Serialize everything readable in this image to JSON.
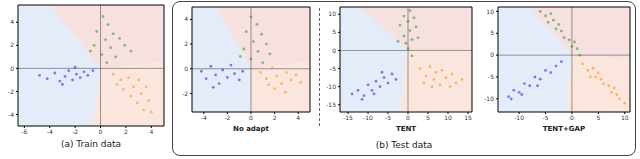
{
  "chart_data": [
    {
      "type": "scatter",
      "title": "(a) Train data",
      "xlim": [
        -6.5,
        5
      ],
      "ylim": [
        -5,
        5.5
      ],
      "xticks": [
        -6,
        -4,
        -2,
        0,
        2,
        4
      ],
      "yticks": [
        -4,
        -2,
        0,
        2,
        4
      ],
      "reference_lines": {
        "x": 0,
        "y": 0
      },
      "regions": [
        {
          "color": "#e3ecf8",
          "points": [
            [
              0,
              0
            ],
            [
              -4,
              5.5
            ],
            [
              -6.5,
              5.5
            ],
            [
              -6.5,
              -5
            ],
            [
              -0.5,
              -5
            ]
          ]
        },
        {
          "color": "#f6e0e0",
          "points": [
            [
              0,
              0
            ],
            [
              -4,
              5.5
            ],
            [
              5,
              5.5
            ],
            [
              5,
              0.5
            ]
          ]
        },
        {
          "color": "#fbe6de",
          "points": [
            [
              0,
              0
            ],
            [
              5,
              0.5
            ],
            [
              5,
              -5
            ],
            [
              -0.5,
              -5
            ]
          ]
        }
      ],
      "series": [
        {
          "color": "#2020e0",
          "points": [
            [
              -4.8,
              -0.6
            ],
            [
              -4.2,
              -0.9
            ],
            [
              -3.6,
              -0.4
            ],
            [
              -3.2,
              -1.1
            ],
            [
              -2.8,
              -0.7
            ],
            [
              -2.5,
              -0.2
            ],
            [
              -2.2,
              -1.0
            ],
            [
              -1.9,
              -0.5
            ],
            [
              -1.6,
              -0.8
            ],
            [
              -1.3,
              -0.3
            ],
            [
              -1.0,
              -0.6
            ],
            [
              -0.6,
              -0.2
            ],
            [
              -3.0,
              -1.4
            ],
            [
              -2.0,
              0.1
            ]
          ]
        },
        {
          "color": "#1a9a1a",
          "points": [
            [
              0.2,
              4.5
            ],
            [
              0.6,
              3.8
            ],
            [
              -0.3,
              3.2
            ],
            [
              1.0,
              3.0
            ],
            [
              0.4,
              2.5
            ],
            [
              1.5,
              2.6
            ],
            [
              -0.5,
              2.0
            ],
            [
              0.8,
              1.8
            ],
            [
              1.9,
              2.0
            ],
            [
              0.1,
              1.2
            ],
            [
              1.2,
              1.0
            ],
            [
              -0.8,
              1.5
            ],
            [
              2.4,
              1.5
            ],
            [
              0.5,
              0.5
            ]
          ]
        },
        {
          "color": "#ff8c00",
          "points": [
            [
              1.0,
              -0.5
            ],
            [
              1.6,
              -1.0
            ],
            [
              2.2,
              -0.8
            ],
            [
              1.8,
              -1.8
            ],
            [
              2.6,
              -1.6
            ],
            [
              3.0,
              -1.0
            ],
            [
              2.4,
              -2.4
            ],
            [
              3.2,
              -2.2
            ],
            [
              3.6,
              -1.6
            ],
            [
              2.9,
              -3.0
            ],
            [
              3.8,
              -2.8
            ],
            [
              3.4,
              -3.6
            ],
            [
              1.3,
              -1.4
            ],
            [
              4.0,
              -3.8
            ]
          ]
        }
      ]
    },
    {
      "type": "scatter",
      "title": "No adapt",
      "xlim": [
        -5,
        5
      ],
      "ylim": [
        -3.5,
        5
      ],
      "xticks": [
        -4,
        -2,
        0,
        2,
        4
      ],
      "yticks": [
        -2,
        0,
        2,
        4
      ],
      "reference_lines": {
        "x": 0,
        "y": 0
      },
      "regions": [
        {
          "color": "#e3ecf8",
          "points": [
            [
              0,
              0
            ],
            [
              -3,
              5
            ],
            [
              -5,
              5
            ],
            [
              -5,
              -3.5
            ],
            [
              0,
              -3.5
            ]
          ]
        },
        {
          "color": "#f6e0e0",
          "points": [
            [
              0,
              0
            ],
            [
              -3,
              5
            ],
            [
              5,
              5
            ],
            [
              5,
              0.5
            ]
          ]
        },
        {
          "color": "#fbe6de",
          "points": [
            [
              0,
              0
            ],
            [
              5,
              0.5
            ],
            [
              5,
              -3.5
            ],
            [
              0,
              -3.5
            ]
          ]
        }
      ],
      "series": [
        {
          "color": "#2020e0",
          "points": [
            [
              -4.2,
              -0.2
            ],
            [
              -3.8,
              -0.8
            ],
            [
              -3.4,
              0.2
            ],
            [
              -3.0,
              -0.5
            ],
            [
              -2.7,
              -1.2
            ],
            [
              -2.4,
              -0.1
            ],
            [
              -2.0,
              -0.7
            ],
            [
              -1.7,
              0.3
            ],
            [
              -1.4,
              -0.4
            ],
            [
              -1.0,
              -0.9
            ],
            [
              -0.7,
              -0.2
            ],
            [
              -3.2,
              -1.5
            ]
          ]
        },
        {
          "color": "#1a9a1a",
          "points": [
            [
              0.0,
              4.2
            ],
            [
              0.5,
              3.6
            ],
            [
              -0.4,
              3.0
            ],
            [
              0.9,
              2.8
            ],
            [
              0.2,
              2.2
            ],
            [
              1.3,
              2.0
            ],
            [
              -0.6,
              1.6
            ],
            [
              0.6,
              1.4
            ],
            [
              1.6,
              1.2
            ],
            [
              0.0,
              0.8
            ],
            [
              1.0,
              0.5
            ],
            [
              -0.9,
              1.0
            ]
          ]
        },
        {
          "color": "#ff8c00",
          "points": [
            [
              0.8,
              -0.3
            ],
            [
              1.3,
              -0.8
            ],
            [
              1.8,
              0.1
            ],
            [
              2.2,
              -0.6
            ],
            [
              2.6,
              -1.2
            ],
            [
              3.0,
              -0.3
            ],
            [
              3.4,
              -0.9
            ],
            [
              3.8,
              -0.5
            ],
            [
              2.0,
              -1.6
            ],
            [
              2.9,
              -1.9
            ],
            [
              4.2,
              -1.1
            ],
            [
              1.5,
              -1.3
            ]
          ]
        }
      ]
    },
    {
      "type": "scatter",
      "title": "TENT",
      "xlim": [
        -17,
        16
      ],
      "ylim": [
        -17,
        12
      ],
      "xticks": [
        -15,
        -10,
        -5,
        0,
        5,
        10,
        15
      ],
      "yticks": [
        -15,
        -10,
        -5,
        0,
        5,
        10
      ],
      "reference_lines": {
        "x": 0,
        "y": 0
      },
      "regions": [
        {
          "color": "#e3ecf8",
          "points": [
            [
              0,
              0
            ],
            [
              -12,
              12
            ],
            [
              -17,
              12
            ],
            [
              -17,
              -17
            ],
            [
              -2,
              -17
            ]
          ]
        },
        {
          "color": "#f6e0e0",
          "points": [
            [
              0,
              0
            ],
            [
              -12,
              12
            ],
            [
              16,
              12
            ],
            [
              16,
              0
            ]
          ]
        },
        {
          "color": "#fbe6de",
          "points": [
            [
              0,
              0
            ],
            [
              16,
              0
            ],
            [
              16,
              -17
            ],
            [
              -2,
              -17
            ]
          ]
        }
      ],
      "series": [
        {
          "color": "#2020e0",
          "points": [
            [
              -14,
              -12
            ],
            [
              -12.5,
              -11
            ],
            [
              -11,
              -12.5
            ],
            [
              -10,
              -9.5
            ],
            [
              -9,
              -11
            ],
            [
              -8,
              -8.5
            ],
            [
              -7,
              -10
            ],
            [
              -6,
              -7.5
            ],
            [
              -5,
              -9
            ],
            [
              -4,
              -6.5
            ],
            [
              -3,
              -8
            ],
            [
              -11.5,
              -13.5
            ],
            [
              -8.5,
              -12
            ],
            [
              -6.5,
              -6
            ]
          ]
        },
        {
          "color": "#1a9a1a",
          "points": [
            [
              0.5,
              11
            ],
            [
              -1,
              9.5
            ],
            [
              1.5,
              9
            ],
            [
              0,
              8
            ],
            [
              -2,
              7
            ],
            [
              2,
              6.5
            ],
            [
              0.5,
              5.5
            ],
            [
              -1,
              4
            ],
            [
              1,
              3
            ],
            [
              -0.5,
              2
            ],
            [
              2.5,
              3.5
            ],
            [
              0,
              0.5
            ],
            [
              -2.5,
              2.5
            ],
            [
              1,
              -1.5
            ]
          ]
        },
        {
          "color": "#ff8c00",
          "points": [
            [
              3,
              -5
            ],
            [
              4.5,
              -7
            ],
            [
              5.5,
              -4.5
            ],
            [
              6.5,
              -8
            ],
            [
              7,
              -6
            ],
            [
              8,
              -9.5
            ],
            [
              8.5,
              -5.5
            ],
            [
              9.5,
              -7.5
            ],
            [
              10.5,
              -10
            ],
            [
              11,
              -6.5
            ],
            [
              12,
              -9
            ],
            [
              13.5,
              -8
            ],
            [
              6,
              -10
            ],
            [
              4,
              -9
            ]
          ]
        }
      ]
    },
    {
      "type": "scatter",
      "title": "TENT+GAP",
      "xlim": [
        -14,
        11
      ],
      "ylim": [
        -13,
        11
      ],
      "xticks": [
        -10,
        -5,
        0,
        5,
        10
      ],
      "yticks": [
        -10,
        -5,
        0,
        5,
        10
      ],
      "reference_lines": {
        "x": 0,
        "y": 0
      },
      "regions": [
        {
          "color": "#e3ecf8",
          "points": [
            [
              0,
              0
            ],
            [
              -8,
              11
            ],
            [
              -14,
              11
            ],
            [
              -14,
              -13
            ],
            [
              -1,
              -13
            ]
          ]
        },
        {
          "color": "#f6e0e0",
          "points": [
            [
              0,
              0
            ],
            [
              -8,
              11
            ],
            [
              11,
              11
            ],
            [
              11,
              -1
            ]
          ]
        },
        {
          "color": "#fbe6de",
          "points": [
            [
              0,
              0
            ],
            [
              11,
              -1
            ],
            [
              11,
              -13
            ],
            [
              -1,
              -13
            ]
          ]
        }
      ],
      "series": [
        {
          "color": "#2020e0",
          "points": [
            [
              -12,
              -9.5
            ],
            [
              -11,
              -8
            ],
            [
              -10,
              -8.5
            ],
            [
              -9,
              -6.5
            ],
            [
              -8,
              -7
            ],
            [
              -7,
              -5
            ],
            [
              -6,
              -5.5
            ],
            [
              -5,
              -3.5
            ],
            [
              -4,
              -4
            ],
            [
              -3,
              -2.5
            ],
            [
              -9.5,
              -9
            ],
            [
              -6.5,
              -7
            ],
            [
              -2,
              -1.5
            ],
            [
              -11.5,
              -10
            ]
          ]
        },
        {
          "color": "#1a9a1a",
          "points": [
            [
              -6,
              10
            ],
            [
              -5,
              9
            ],
            [
              -4.5,
              7.5
            ],
            [
              -3.5,
              8
            ],
            [
              -3,
              6
            ],
            [
              -2,
              5.5
            ],
            [
              -1.5,
              4
            ],
            [
              -0.5,
              3.5
            ],
            [
              0,
              2
            ],
            [
              1,
              1.5
            ],
            [
              1.5,
              0
            ],
            [
              -4,
              9.5
            ],
            [
              -2.5,
              7
            ],
            [
              0.5,
              3
            ]
          ]
        },
        {
          "color": "#ff8c00",
          "points": [
            [
              2,
              -2
            ],
            [
              3,
              -3.5
            ],
            [
              4,
              -3
            ],
            [
              4.5,
              -5
            ],
            [
              5.5,
              -5.5
            ],
            [
              6,
              -6.5
            ],
            [
              7,
              -7
            ],
            [
              7.5,
              -8.5
            ],
            [
              8.5,
              -9
            ],
            [
              9,
              -10
            ],
            [
              10,
              -11
            ],
            [
              5,
              -4
            ],
            [
              3.5,
              -5
            ],
            [
              8,
              -7.5
            ]
          ]
        }
      ]
    }
  ],
  "group_label": "(b) Test data"
}
